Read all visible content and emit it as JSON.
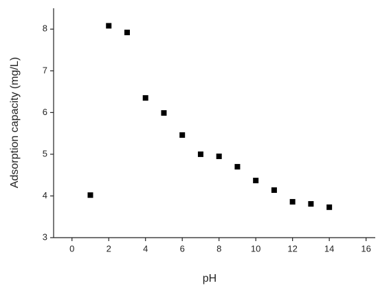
{
  "chart_data": {
    "type": "scatter",
    "x_label": "pH",
    "y_label": "Adsorption capacity (mg/L)",
    "x": [
      1,
      2,
      3,
      4,
      5,
      6,
      7,
      8,
      9,
      10,
      11,
      12,
      13,
      14
    ],
    "values": [
      4.02,
      8.08,
      7.92,
      6.35,
      5.99,
      5.46,
      5.0,
      4.95,
      4.7,
      4.37,
      4.14,
      3.86,
      3.81,
      3.73
    ],
    "color": "#000000",
    "xlim": [
      -1,
      16.5
    ],
    "xticks": [
      0,
      2,
      4,
      6,
      8,
      10,
      12,
      14,
      16
    ],
    "ylim": [
      3,
      8.5
    ],
    "yticks": [
      3,
      4,
      5,
      6,
      7,
      8
    ]
  }
}
